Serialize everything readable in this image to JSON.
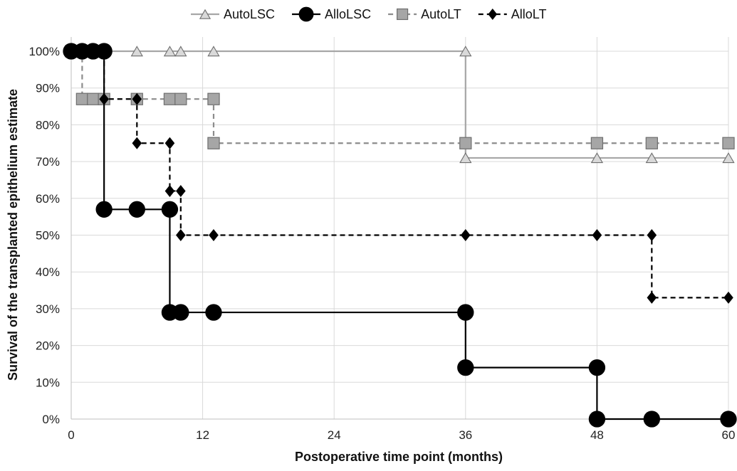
{
  "chart_data": {
    "type": "line",
    "step": true,
    "title": "",
    "xlabel": "Postoperative time point (months)",
    "ylabel": "Survival of the transplanted epithelium estimate",
    "xlim": [
      0,
      60
    ],
    "ylim": [
      0,
      100
    ],
    "x_ticks": [
      0,
      12,
      24,
      36,
      48,
      60
    ],
    "y_ticks": [
      0,
      10,
      20,
      30,
      40,
      50,
      60,
      70,
      80,
      90,
      100
    ],
    "y_tick_labels": [
      "0%",
      "10%",
      "20%",
      "30%",
      "40%",
      "50%",
      "60%",
      "70%",
      "80%",
      "90%",
      "100%"
    ],
    "grid": true,
    "legend_position": "top",
    "series": [
      {
        "name": "AutoLSC",
        "color": "#a6a6a6",
        "line_style": "solid",
        "marker": "triangle",
        "marker_fill": "#d9d9d9",
        "steps": [
          [
            0,
            100
          ],
          [
            36,
            100
          ],
          [
            36,
            71
          ],
          [
            60,
            71
          ]
        ],
        "markers": [
          [
            0,
            100
          ],
          [
            1,
            100
          ],
          [
            2,
            100
          ],
          [
            3,
            100
          ],
          [
            6,
            100
          ],
          [
            9,
            100
          ],
          [
            10,
            100
          ],
          [
            13,
            100
          ],
          [
            36,
            100
          ],
          [
            36,
            71
          ],
          [
            48,
            71
          ],
          [
            53,
            71
          ],
          [
            60,
            71
          ]
        ]
      },
      {
        "name": "AlloLSC",
        "color": "#000000",
        "line_style": "solid",
        "marker": "circle",
        "marker_fill": "#000000",
        "steps": [
          [
            0,
            100
          ],
          [
            3,
            100
          ],
          [
            3,
            57
          ],
          [
            9,
            57
          ],
          [
            9,
            29
          ],
          [
            36,
            29
          ],
          [
            36,
            14
          ],
          [
            48,
            14
          ],
          [
            48,
            0
          ],
          [
            60,
            0
          ]
        ],
        "markers": [
          [
            0,
            100
          ],
          [
            1,
            100
          ],
          [
            2,
            100
          ],
          [
            3,
            100
          ],
          [
            3,
            57
          ],
          [
            6,
            57
          ],
          [
            9,
            57
          ],
          [
            9,
            29
          ],
          [
            10,
            29
          ],
          [
            13,
            29
          ],
          [
            36,
            29
          ],
          [
            36,
            14
          ],
          [
            48,
            14
          ],
          [
            48,
            0
          ],
          [
            53,
            0
          ],
          [
            60,
            0
          ]
        ]
      },
      {
        "name": "AutoLT",
        "color": "#8c8c8c",
        "line_style": "dashed",
        "marker": "square",
        "marker_fill": "#a6a6a6",
        "steps": [
          [
            0,
            100
          ],
          [
            1,
            100
          ],
          [
            1,
            87
          ],
          [
            13,
            87
          ],
          [
            13,
            75
          ],
          [
            60,
            75
          ]
        ],
        "markers": [
          [
            0,
            100
          ],
          [
            1,
            100
          ],
          [
            1,
            87
          ],
          [
            2,
            87
          ],
          [
            3,
            87
          ],
          [
            6,
            87
          ],
          [
            9,
            87
          ],
          [
            10,
            87
          ],
          [
            13,
            87
          ],
          [
            13,
            75
          ],
          [
            36,
            75
          ],
          [
            48,
            75
          ],
          [
            53,
            75
          ],
          [
            60,
            75
          ]
        ]
      },
      {
        "name": "AlloLT",
        "color": "#000000",
        "line_style": "dashed",
        "marker": "diamond",
        "marker_fill": "#000000",
        "steps": [
          [
            0,
            100
          ],
          [
            3,
            100
          ],
          [
            3,
            87
          ],
          [
            6,
            87
          ],
          [
            6,
            75
          ],
          [
            9,
            75
          ],
          [
            9,
            62
          ],
          [
            10,
            62
          ],
          [
            10,
            50
          ],
          [
            53,
            50
          ],
          [
            53,
            33
          ],
          [
            60,
            33
          ]
        ],
        "markers": [
          [
            0,
            100
          ],
          [
            1,
            100
          ],
          [
            2,
            100
          ],
          [
            3,
            100
          ],
          [
            3,
            87
          ],
          [
            6,
            87
          ],
          [
            6,
            75
          ],
          [
            9,
            75
          ],
          [
            9,
            62
          ],
          [
            10,
            62
          ],
          [
            10,
            50
          ],
          [
            13,
            50
          ],
          [
            36,
            50
          ],
          [
            48,
            50
          ],
          [
            53,
            50
          ],
          [
            53,
            33
          ],
          [
            60,
            33
          ]
        ]
      }
    ]
  }
}
